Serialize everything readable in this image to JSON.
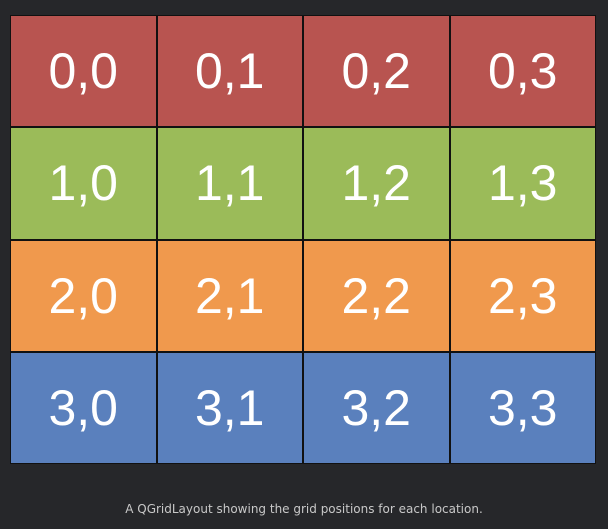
{
  "row_colors": [
    "#b85450",
    "#9bbb59",
    "#f0994d",
    "#5a80bd"
  ],
  "cells": [
    [
      "0,0",
      "0,1",
      "0,2",
      "0,3"
    ],
    [
      "1,0",
      "1,1",
      "1,2",
      "1,3"
    ],
    [
      "2,0",
      "2,1",
      "2,2",
      "2,3"
    ],
    [
      "3,0",
      "3,1",
      "3,2",
      "3,3"
    ]
  ],
  "caption": "A QGridLayout showing the grid positions for each location."
}
